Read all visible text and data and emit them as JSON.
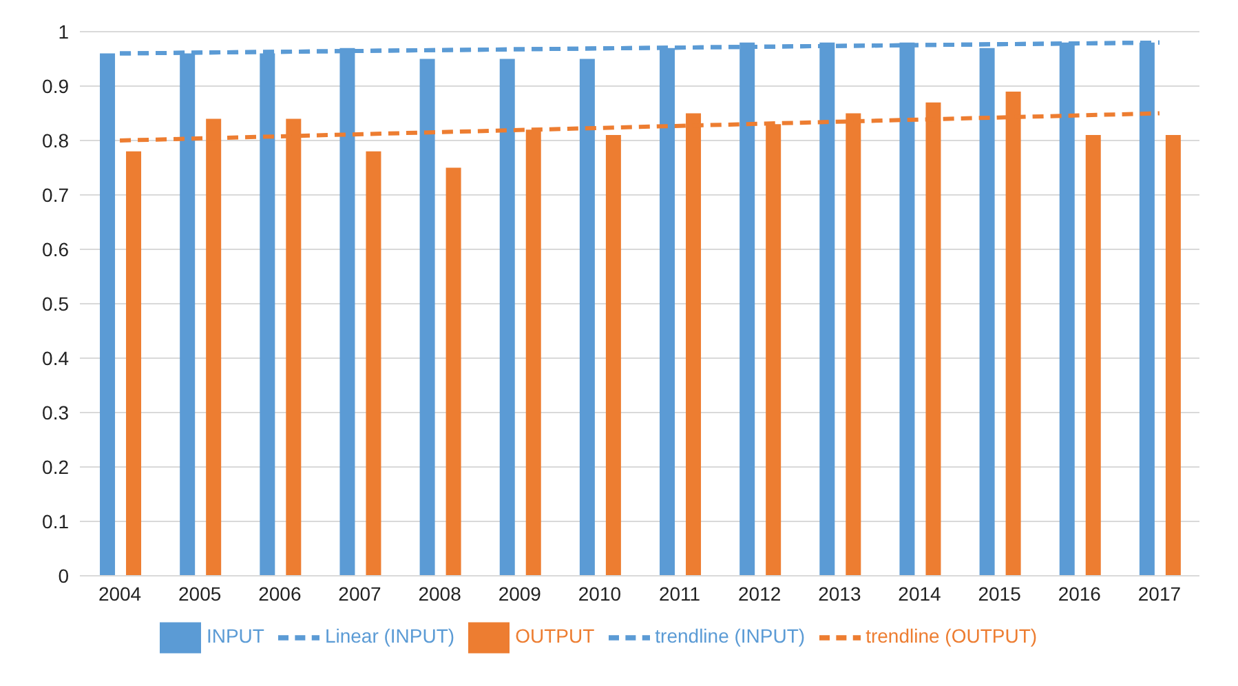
{
  "chart_data": {
    "type": "bar",
    "categories": [
      "2004",
      "2005",
      "2006",
      "2007",
      "2008",
      "2009",
      "2010",
      "2011",
      "2012",
      "2013",
      "2014",
      "2015",
      "2016",
      "2017"
    ],
    "series": [
      {
        "name": "INPUT",
        "color": "#5b9bd5",
        "values": [
          0.96,
          0.96,
          0.96,
          0.97,
          0.95,
          0.95,
          0.95,
          0.97,
          0.98,
          0.98,
          0.98,
          0.97,
          0.98,
          0.98
        ]
      },
      {
        "name": "OUTPUT",
        "color": "#ed7d31",
        "values": [
          0.78,
          0.84,
          0.84,
          0.78,
          0.75,
          0.82,
          0.81,
          0.85,
          0.83,
          0.85,
          0.87,
          0.89,
          0.81,
          0.81
        ]
      },
      {
        "name": "trendline (INPUT)",
        "type": "line",
        "line_style": "dashed",
        "color": "#5b9bd5",
        "values": [
          0.96,
          null,
          null,
          null,
          null,
          null,
          null,
          null,
          null,
          null,
          null,
          null,
          null,
          0.98
        ]
      },
      {
        "name": "Linear (INPUT)",
        "type": "line",
        "line_style": "dashed",
        "color": "#5b9bd5",
        "values": [
          0.96,
          null,
          null,
          null,
          null,
          null,
          null,
          null,
          null,
          null,
          null,
          null,
          null,
          0.98
        ]
      },
      {
        "name": "trendline (OUTPUT)",
        "type": "line",
        "line_style": "dashed",
        "color": "#ed7d31",
        "values": [
          0.8,
          null,
          null,
          null,
          null,
          null,
          null,
          null,
          null,
          null,
          null,
          null,
          null,
          0.85
        ]
      }
    ],
    "ylim": [
      0,
      1
    ],
    "yticks": [
      0,
      0.1,
      0.2,
      0.3,
      0.4,
      0.5,
      0.6,
      0.7,
      0.8,
      0.9,
      1
    ],
    "grid": "y",
    "legend": "bottom",
    "marker": "none"
  }
}
